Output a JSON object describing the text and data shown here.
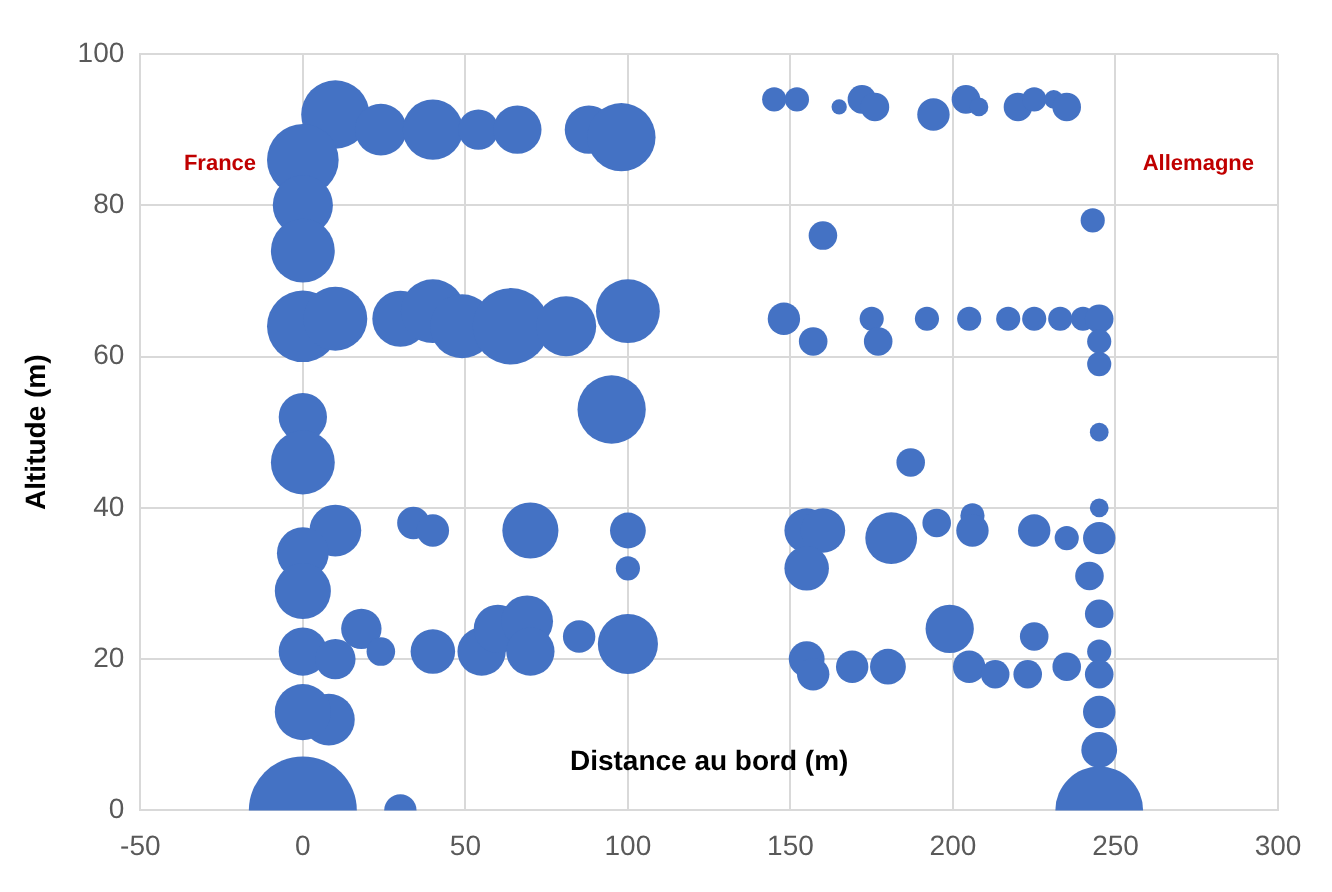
{
  "chart_data": {
    "type": "bubble",
    "xlabel": "Distance au bord (m)",
    "ylabel": "Altitude (m)",
    "annotations": [
      "France",
      "Allemagne"
    ],
    "xlim": [
      -50,
      300
    ],
    "xticks": [
      -50,
      0,
      50,
      100,
      150,
      200,
      250,
      300
    ],
    "ylim": [
      0,
      100
    ],
    "yticks": [
      0,
      20,
      40,
      60,
      80,
      100
    ],
    "grid": true,
    "series": [
      {
        "color": "#4472c4",
        "x": [
          10,
          0,
          24,
          40,
          54,
          66,
          88,
          98,
          0,
          0,
          0,
          10,
          30,
          40,
          49,
          64,
          81,
          100,
          0,
          95,
          0,
          10,
          0,
          0,
          34,
          40,
          70,
          100,
          100,
          18,
          24,
          0,
          10,
          40,
          55,
          60,
          69,
          70,
          85,
          100,
          8,
          0,
          0,
          30,
          145,
          152,
          165,
          172,
          176,
          194,
          204,
          208,
          220,
          225,
          231,
          235,
          160,
          243,
          148,
          157,
          175,
          177,
          192,
          205,
          217,
          225,
          233,
          240,
          245,
          245,
          245,
          245,
          187,
          245,
          155,
          160,
          155,
          181,
          195,
          206,
          206,
          225,
          235,
          245,
          242,
          245,
          199,
          225,
          245,
          155,
          157,
          169,
          180,
          205,
          213,
          223,
          235,
          245,
          245,
          245,
          245
        ],
        "values": [
          92,
          86,
          90,
          90,
          90,
          90,
          90,
          89,
          80,
          74,
          64,
          65,
          65,
          66,
          64,
          64,
          64,
          66,
          52,
          53,
          46,
          37,
          34,
          29,
          38,
          37,
          37,
          37,
          32,
          24,
          21,
          21,
          20,
          21,
          21,
          24,
          25,
          21,
          23,
          22,
          12,
          13,
          0,
          0,
          94,
          94,
          93,
          94,
          93,
          92,
          94,
          93,
          93,
          94,
          94,
          93,
          76,
          78,
          65,
          62,
          65,
          62,
          65,
          65,
          65,
          65,
          65,
          65,
          65,
          62,
          59,
          50,
          46,
          40,
          37,
          37,
          32,
          36,
          38,
          39,
          37,
          37,
          36,
          36,
          31,
          26,
          24,
          23,
          21,
          20,
          18,
          19,
          19,
          19,
          18,
          18,
          19,
          18,
          13,
          8,
          0
        ],
        "sizes": [
          0.4,
          0.44,
          0.23,
          0.31,
          0.14,
          0.2,
          0.2,
          0.4,
          0.31,
          0.35,
          0.44,
          0.35,
          0.27,
          0.35,
          0.35,
          0.5,
          0.31,
          0.35,
          0.2,
          0.4,
          0.35,
          0.23,
          0.23,
          0.27,
          0.09,
          0.09,
          0.27,
          0.11,
          0.05,
          0.14,
          0.07,
          0.2,
          0.14,
          0.17,
          0.2,
          0.2,
          0.23,
          0.2,
          0.09,
          0.31,
          0.23,
          0.27,
          1,
          0.09,
          0.05,
          0.05,
          0.02,
          0.07,
          0.07,
          0.09,
          0.07,
          0.03,
          0.07,
          0.05,
          0.03,
          0.07,
          0.07,
          0.05,
          0.09,
          0.07,
          0.05,
          0.07,
          0.05,
          0.05,
          0.05,
          0.05,
          0.05,
          0.05,
          0.07,
          0.05,
          0.05,
          0.03,
          0.07,
          0.03,
          0.17,
          0.17,
          0.17,
          0.23,
          0.07,
          0.05,
          0.09,
          0.09,
          0.05,
          0.09,
          0.07,
          0.07,
          0.2,
          0.07,
          0.05,
          0.11,
          0.09,
          0.09,
          0.11,
          0.09,
          0.07,
          0.07,
          0.07,
          0.07,
          0.09,
          0.11,
          0.66
        ]
      }
    ]
  }
}
